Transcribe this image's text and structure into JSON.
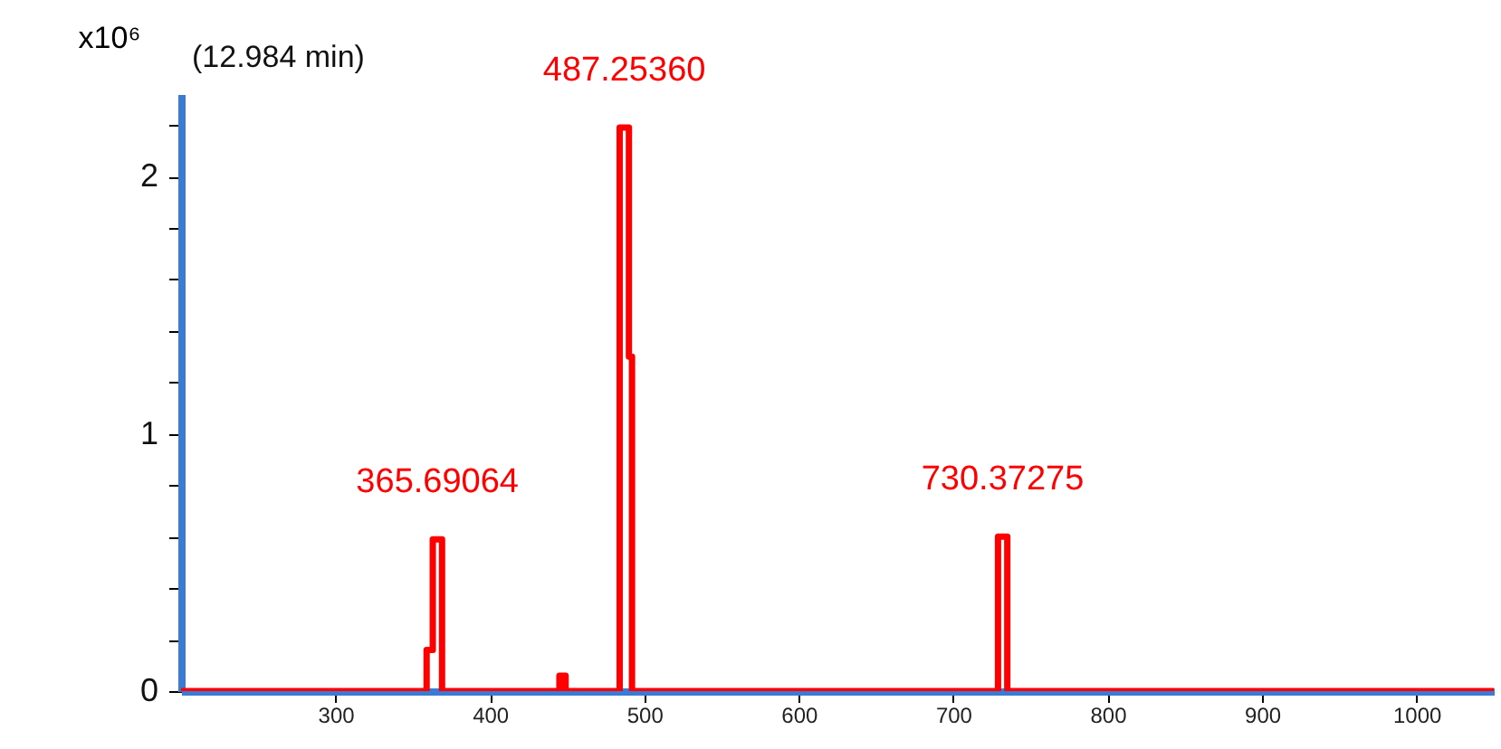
{
  "chart_data": {
    "type": "line",
    "ylabel": "x10⁶",
    "x": [
      200,
      359,
      359,
      363,
      363,
      369,
      369,
      445,
      445,
      449,
      449,
      484,
      484,
      490,
      490,
      492,
      492,
      729,
      729,
      735,
      735,
      1050
    ],
    "series": [
      {
        "color": "#ff0000",
        "values": [
          0,
          0,
          0.16,
          0.16,
          0.59,
          0.59,
          0,
          0,
          0.06,
          0.06,
          0,
          0,
          2.19,
          2.19,
          1.3,
          1.3,
          0,
          0,
          0.6,
          0.6,
          0,
          0
        ]
      }
    ],
    "xlim": [
      200,
      1050
    ],
    "xticks": [
      300,
      400,
      500,
      600,
      700,
      800,
      900,
      1000
    ],
    "ylim": [
      0,
      2.32
    ],
    "yticks": [
      0,
      {
        "value": 0.2,
        "label": null
      },
      {
        "value": 0.4,
        "label": null
      },
      {
        "value": 0.6,
        "label": null
      },
      {
        "value": 0.8,
        "label": null
      },
      1,
      {
        "value": 1.2,
        "label": null
      },
      {
        "value": 1.4,
        "label": null
      },
      {
        "value": 1.6,
        "label": null
      },
      {
        "value": 1.8,
        "label": null
      },
      2,
      {
        "value": 2.2,
        "label": null
      }
    ],
    "annotations": [
      "(12.984 min)",
      {
        "text": "365.69064",
        "x": 366,
        "y": 0.59
      },
      {
        "text": "487.25360",
        "x": 487,
        "y": 2.19
      },
      {
        "text": "730.37275",
        "x": 732,
        "y": 0.6
      }
    ],
    "grid": false,
    "marker": "none",
    "line_style": "solid"
  }
}
